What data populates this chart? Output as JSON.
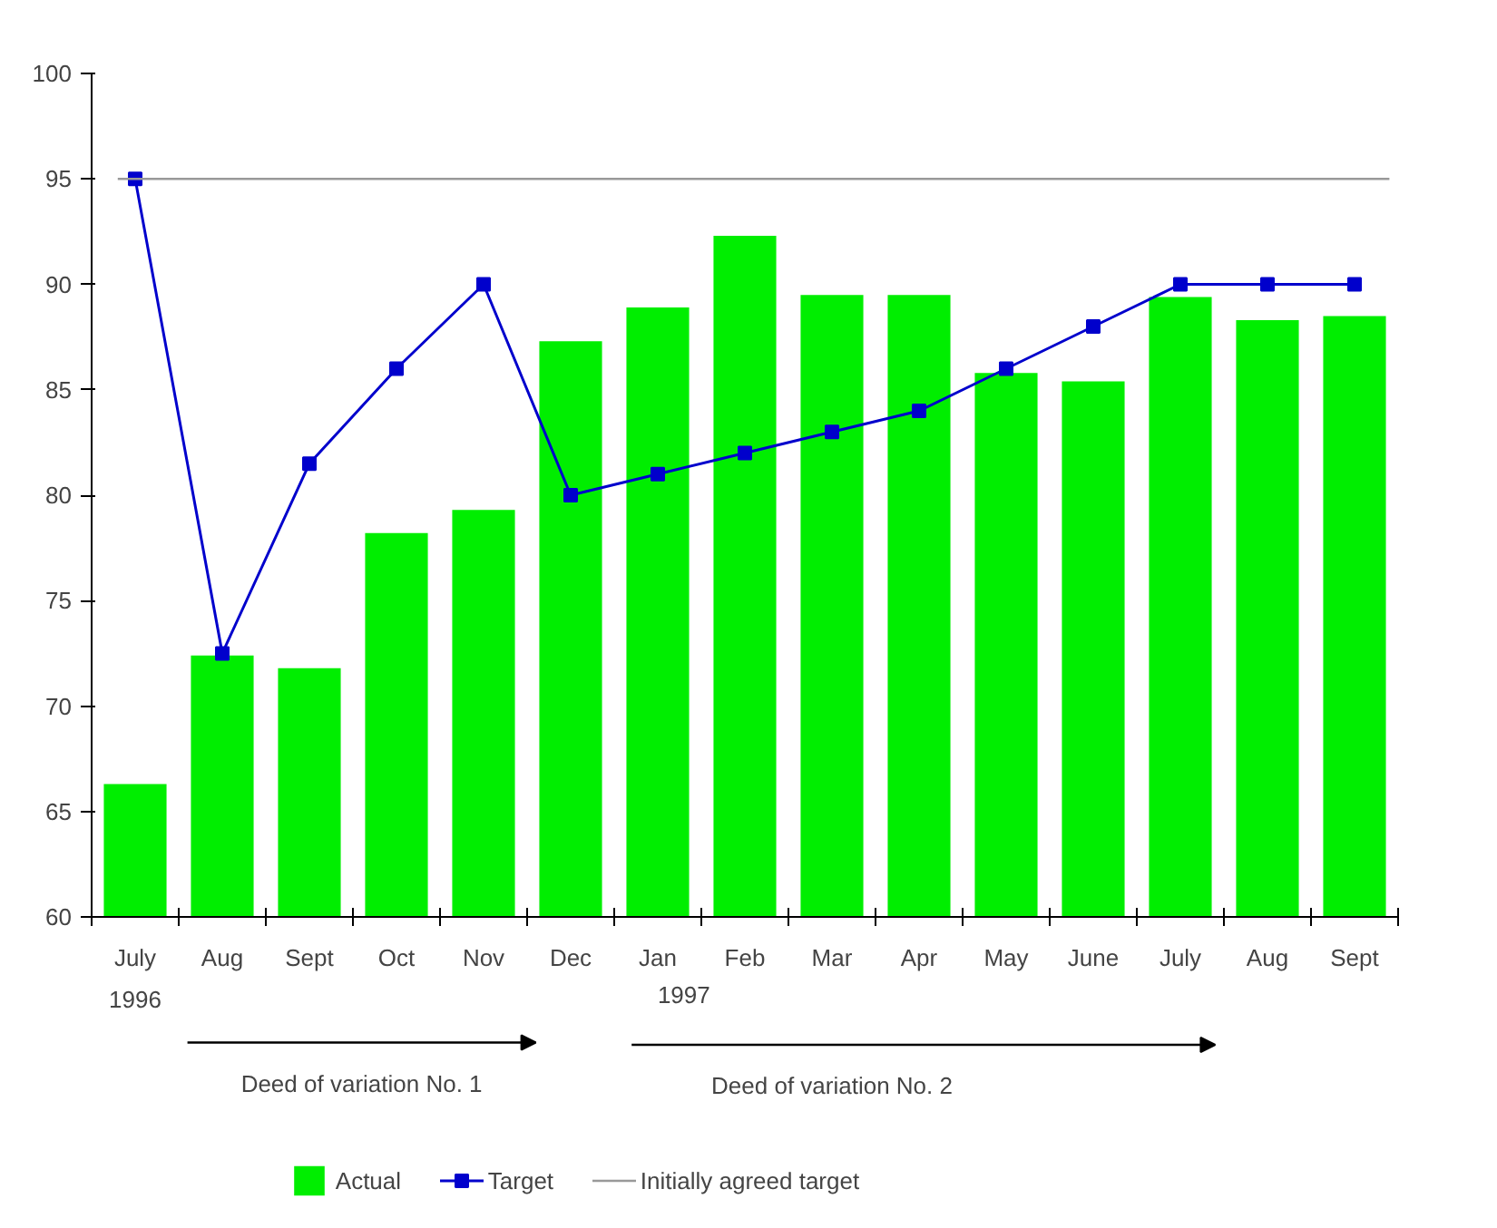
{
  "chart_data": {
    "type": "bar",
    "categories": [
      "July",
      "Aug",
      "Sept",
      "Oct",
      "Nov",
      "Dec",
      "Jan",
      "Feb",
      "Mar",
      "Apr",
      "May",
      "June",
      "July",
      "Aug",
      "Sept"
    ],
    "series": [
      {
        "name": "Actual",
        "color": "#00ee00",
        "values": [
          66.3,
          72.4,
          71.8,
          78.2,
          79.3,
          87.3,
          88.9,
          92.3,
          89.5,
          89.5,
          85.8,
          85.4,
          89.4,
          88.3,
          88.5
        ]
      },
      {
        "name": "Target",
        "type": "line",
        "color": "#0000cc",
        "values": [
          95,
          72.5,
          81.5,
          86,
          90,
          80,
          81,
          82,
          83,
          84,
          86,
          88,
          90,
          90,
          90
        ]
      }
    ],
    "ref_lines": [
      {
        "axis": "y",
        "value": 95,
        "label": "Initially agreed target",
        "color": "#999999"
      }
    ],
    "annotations": [
      "1996",
      "1997",
      "Deed of variation No. 1",
      "Deed of variation No. 2"
    ],
    "ylim": [
      60,
      100
    ],
    "yticks": [
      60,
      65,
      70,
      75,
      80,
      85,
      90,
      95,
      100
    ],
    "grid": false,
    "legend": "bottom",
    "marker": "square",
    "line_style": "solid"
  }
}
